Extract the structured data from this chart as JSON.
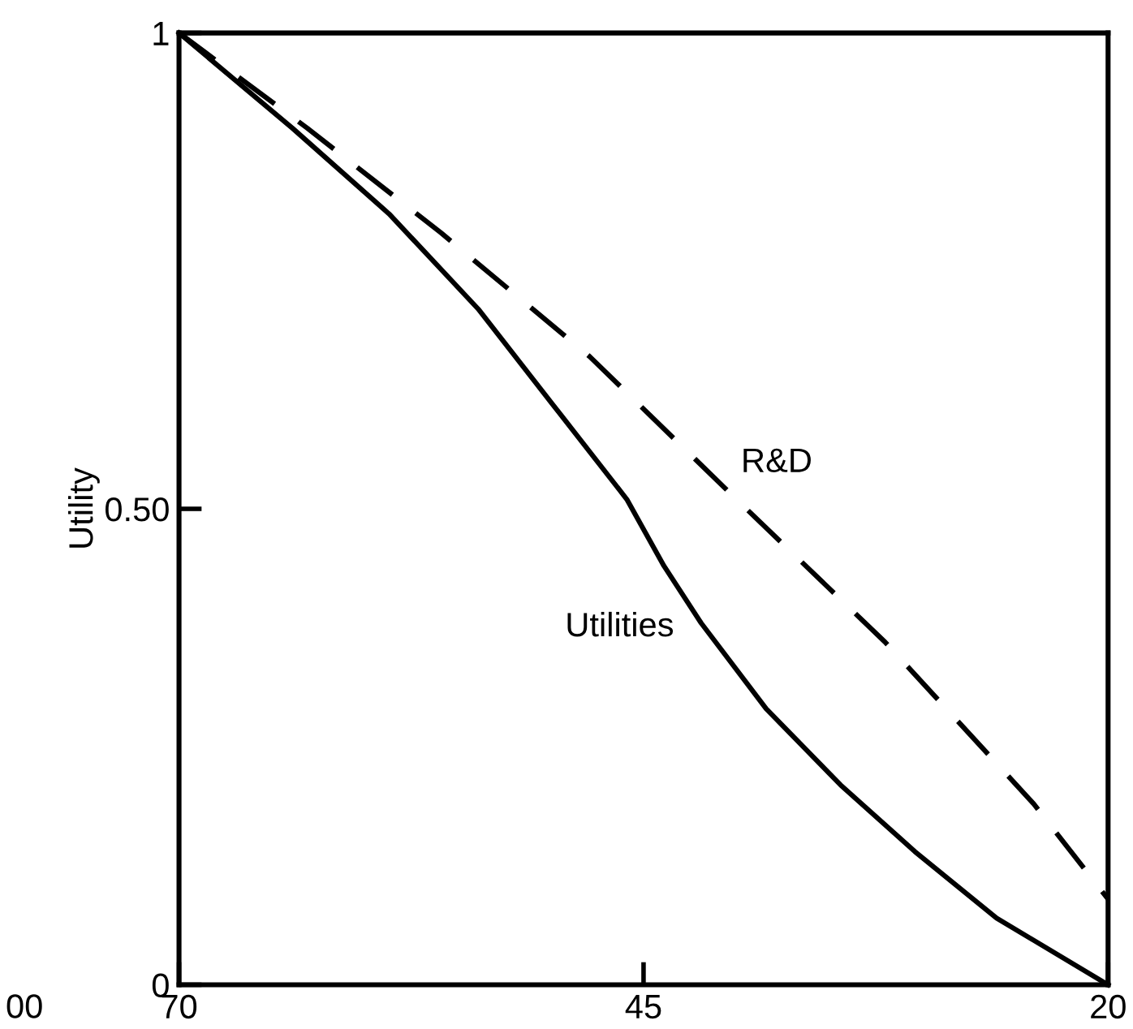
{
  "chart_data": {
    "type": "line",
    "ylabel": "Utility",
    "x": [
      70,
      63.9,
      58.7,
      53.9,
      49.9,
      45.9,
      43.9,
      41.9,
      38.4,
      34.4,
      30.4,
      26.0,
      20
    ],
    "series": [
      {
        "name": "Utilities",
        "color": "#000000",
        "line_style": "solid",
        "values": [
          1,
          0.9,
          0.81,
          0.71,
          0.61,
          0.51,
          0.44,
          0.38,
          0.29,
          0.21,
          0.14,
          0.07,
          0
        ]
      },
      {
        "name": "R&D",
        "color": "#000000",
        "line_style": "dashed",
        "x": [
          70,
          63.1,
          55.9,
          47.9,
          40.0,
          32.0,
          24.0,
          20
        ],
        "values": [
          1,
          0.9,
          0.79,
          0.66,
          0.51,
          0.36,
          0.19,
          0.09
        ]
      }
    ],
    "xlim": [
      70,
      20
    ],
    "xticks": [
      70,
      45,
      20
    ],
    "ylim": [
      0,
      1
    ],
    "yticks": [
      0,
      {
        "value": 0.5,
        "label": "0.50"
      },
      1
    ],
    "grid": false,
    "legend": false,
    "marker": "none",
    "annotations": [
      "00"
    ]
  }
}
